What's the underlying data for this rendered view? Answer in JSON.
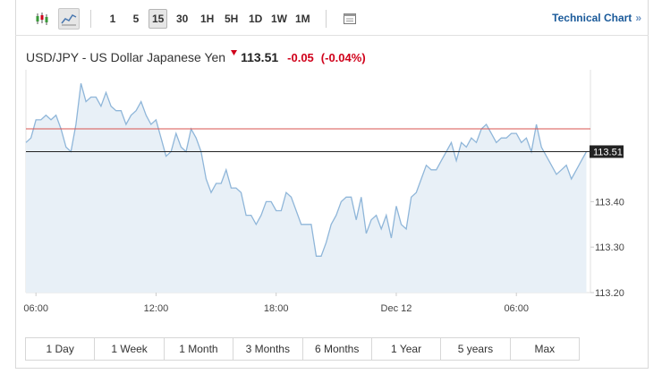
{
  "toolbar": {
    "chart_type_icons": [
      "candlestick-icon",
      "line-chart-icon"
    ],
    "active_chart_type": "line",
    "intervals": [
      {
        "label": "1",
        "active": false
      },
      {
        "label": "5",
        "active": false
      },
      {
        "label": "15",
        "active": true
      },
      {
        "label": "30",
        "active": false
      },
      {
        "label": "1H",
        "active": false
      },
      {
        "label": "5H",
        "active": false
      },
      {
        "label": "1D",
        "active": false
      },
      {
        "label": "1W",
        "active": false
      },
      {
        "label": "1M",
        "active": false
      }
    ],
    "settings_icon": "chart-settings-icon",
    "technical_chart_label": "Technical Chart",
    "technical_chart_arrow": "»"
  },
  "quote": {
    "pair": "USD/JPY - US Dollar Japanese Yen",
    "price": "113.51",
    "change": "-0.05",
    "change_pct": "(-0.04%)",
    "direction": "down",
    "down_color": "#d0021b"
  },
  "range_buttons": [
    "1 Day",
    "1 Week",
    "1 Month",
    "3 Months",
    "6 Months",
    "1 Year",
    "5 years",
    "Max"
  ],
  "chart_data": {
    "type": "area",
    "x_tick_labels": [
      {
        "label": "06:00",
        "x": 0.5
      },
      {
        "label": "12:00",
        "x": 6.5
      },
      {
        "label": "18:00",
        "x": 12.5
      },
      {
        "label": "Dec 12",
        "x": 18.5
      },
      {
        "label": "06:00",
        "x": 24.5
      }
    ],
    "xlim": [
      0,
      28.2
    ],
    "ylim": [
      113.2,
      113.69
    ],
    "y_ticks": [
      "113.20",
      "113.30",
      "113.40"
    ],
    "last_price_label": "113.51",
    "last_price": 113.51,
    "reference_price": 113.56,
    "line_color": "#8fb6d9",
    "fill_color": "#e8f0f7",
    "reference_line_color": "#d9534f",
    "last_price_line_color": "#222222",
    "x": [
      0.0,
      0.25,
      0.5,
      0.75,
      1.0,
      1.25,
      1.5,
      1.75,
      2.0,
      2.25,
      2.5,
      2.75,
      3.0,
      3.25,
      3.5,
      3.75,
      4.0,
      4.25,
      4.5,
      4.75,
      5.0,
      5.25,
      5.5,
      5.75,
      6.0,
      6.25,
      6.5,
      6.75,
      7.0,
      7.25,
      7.5,
      7.75,
      8.0,
      8.25,
      8.5,
      8.75,
      9.0,
      9.25,
      9.5,
      9.75,
      10.0,
      10.25,
      10.5,
      10.75,
      11.0,
      11.25,
      11.5,
      11.75,
      12.0,
      12.25,
      12.5,
      12.75,
      13.0,
      13.25,
      13.5,
      13.75,
      14.0,
      14.25,
      14.5,
      14.75,
      15.0,
      15.25,
      15.5,
      15.75,
      16.0,
      16.25,
      16.5,
      16.75,
      17.0,
      17.25,
      17.5,
      17.75,
      18.0,
      18.25,
      18.5,
      18.75,
      19.0,
      19.25,
      19.5,
      19.75,
      20.0,
      20.25,
      20.5,
      20.75,
      21.0,
      21.25,
      21.5,
      21.75,
      22.0,
      22.25,
      22.5,
      22.75,
      23.0,
      23.25,
      23.5,
      23.75,
      24.0,
      24.25,
      24.5,
      24.75,
      25.0,
      25.25,
      25.5,
      25.75,
      26.0,
      26.25,
      26.5,
      26.75,
      27.0,
      27.25,
      27.5,
      27.75,
      28.0
    ],
    "y": [
      113.53,
      113.54,
      113.58,
      113.58,
      113.59,
      113.58,
      113.59,
      113.56,
      113.52,
      113.51,
      113.57,
      113.66,
      113.62,
      113.63,
      113.63,
      113.61,
      113.64,
      113.61,
      113.6,
      113.6,
      113.57,
      113.59,
      113.6,
      113.62,
      113.59,
      113.57,
      113.58,
      113.54,
      113.5,
      113.51,
      113.55,
      113.52,
      113.51,
      113.56,
      113.54,
      113.51,
      113.45,
      113.42,
      113.44,
      113.44,
      113.47,
      113.43,
      113.43,
      113.42,
      113.37,
      113.37,
      113.35,
      113.37,
      113.4,
      113.4,
      113.38,
      113.38,
      113.42,
      113.41,
      113.38,
      113.35,
      113.35,
      113.35,
      113.28,
      113.28,
      113.31,
      113.35,
      113.37,
      113.4,
      113.41,
      113.41,
      113.36,
      113.41,
      113.33,
      113.36,
      113.37,
      113.34,
      113.37,
      113.32,
      113.39,
      113.35,
      113.34,
      113.41,
      113.42,
      113.45,
      113.48,
      113.47,
      113.47,
      113.49,
      113.51,
      113.53,
      113.49,
      113.53,
      113.52,
      113.54,
      113.53,
      113.56,
      113.57,
      113.55,
      113.53,
      113.54,
      113.54,
      113.55,
      113.55,
      113.53,
      113.54,
      113.51,
      113.57,
      113.52,
      113.5,
      113.48,
      113.46,
      113.47,
      113.48,
      113.45,
      113.47,
      113.49,
      113.51
    ]
  }
}
